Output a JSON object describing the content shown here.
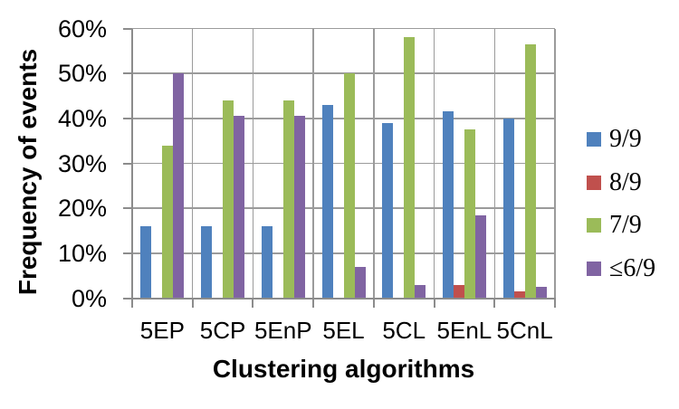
{
  "chart_data": {
    "type": "bar",
    "title": "",
    "xlabel": "Clustering algorithms",
    "ylabel": "Frequency of events",
    "categories": [
      "5EP",
      "5CP",
      "5EnP",
      "5EL",
      "5CL",
      "5EnL",
      "5CnL"
    ],
    "series": [
      {
        "name": "9/9",
        "color": "#4F81BD",
        "values": [
          16,
          16,
          16,
          43,
          39,
          41.5,
          40
        ]
      },
      {
        "name": "8/9",
        "color": "#C0504D",
        "values": [
          0,
          0,
          0,
          0,
          0,
          3,
          1.5
        ]
      },
      {
        "name": "7/9",
        "color": "#9BBB59",
        "values": [
          34,
          44,
          44,
          50,
          58,
          37.5,
          56.5
        ]
      },
      {
        "name": "≤6/9",
        "color": "#8064A2",
        "values": [
          50,
          40.5,
          40.5,
          7,
          3,
          18.5,
          2.5
        ]
      }
    ],
    "ylim": [
      0,
      60
    ],
    "yticks": [
      {
        "value": 0,
        "label": "0%"
      },
      {
        "value": 10,
        "label": "10%"
      },
      {
        "value": 20,
        "label": "20%"
      },
      {
        "value": 30,
        "label": "30%"
      },
      {
        "value": 40,
        "label": "40%"
      },
      {
        "value": 50,
        "label": "50%"
      },
      {
        "value": 60,
        "label": "60%"
      }
    ],
    "grid": true,
    "legend_position": "right"
  },
  "colors": {
    "grid": "#9B9B9B",
    "axis": "#8C8C8C",
    "text": "#000000",
    "background": "#FFFFFF"
  }
}
